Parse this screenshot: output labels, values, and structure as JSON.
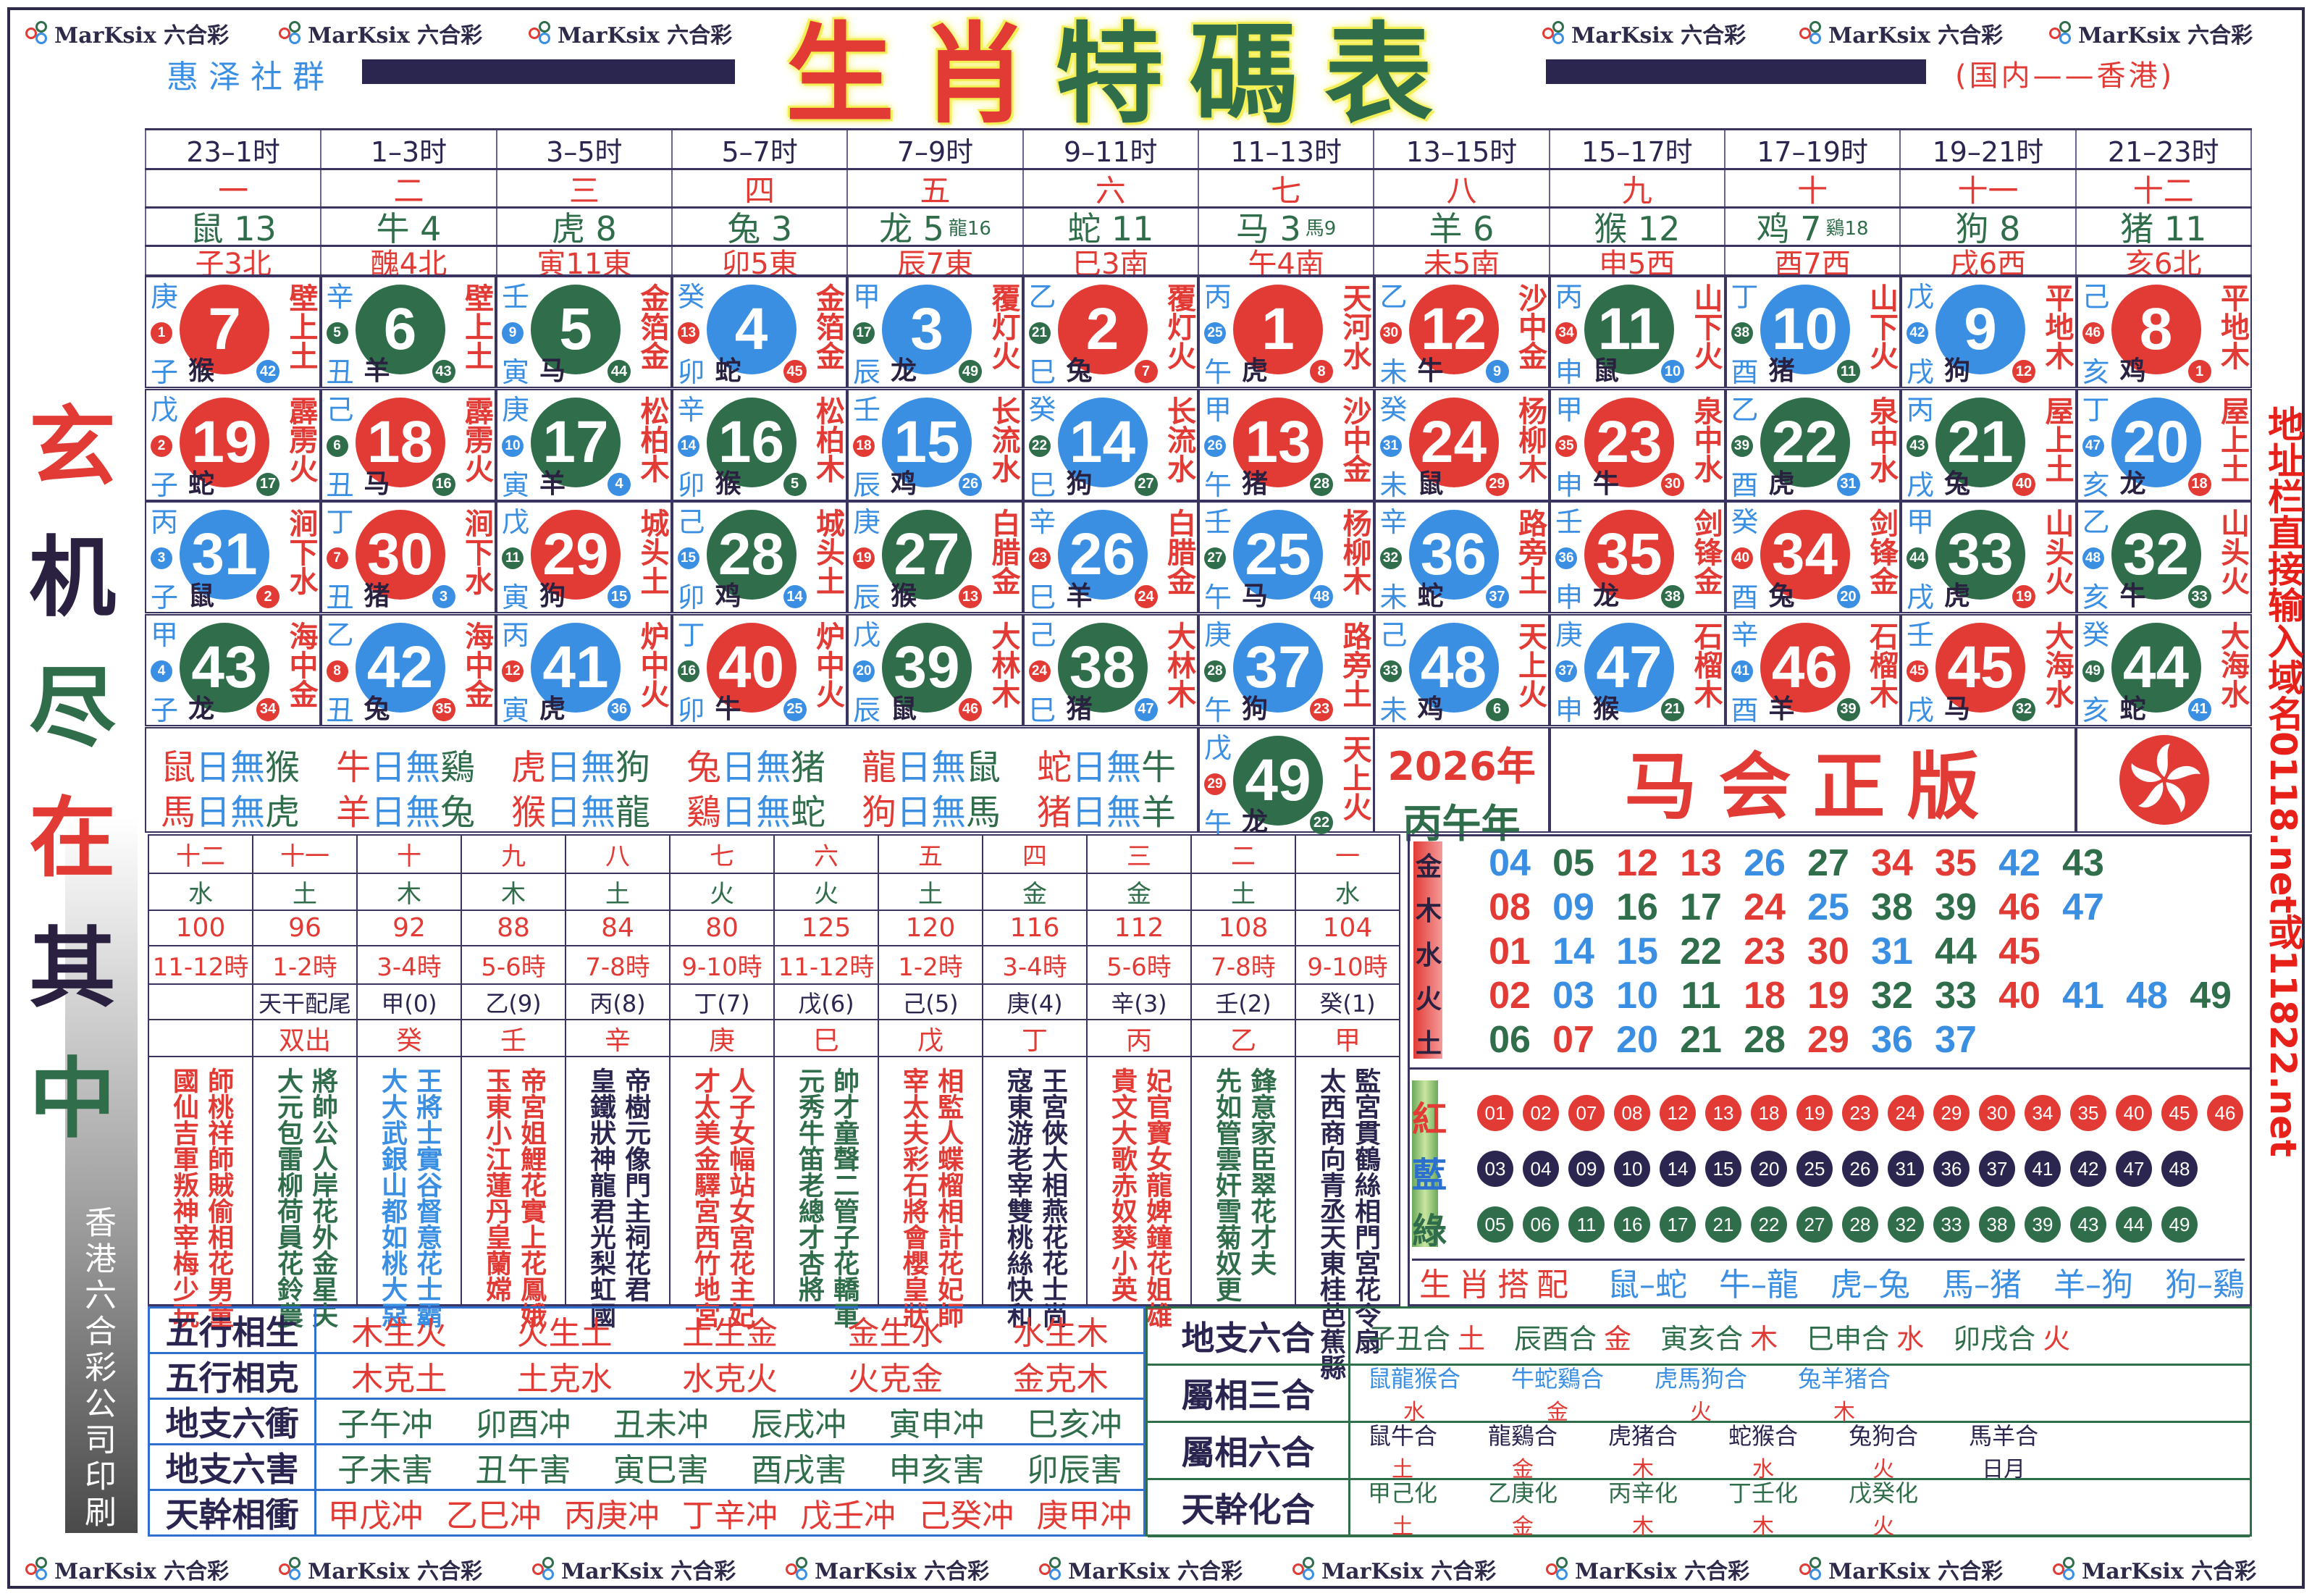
{
  "colors": {
    "red": "#e23b35",
    "green": "#2f6d4b",
    "blue": "#3b8fe3",
    "navy": "#2b2650"
  },
  "logo_text": "MarKsix 六合彩",
  "title": [
    "生",
    "肖",
    "特",
    "碼",
    "表"
  ],
  "subtitle_left": "惠泽社群",
  "subtitle_right": "(国内——香港)",
  "side_left": {
    "chars": [
      "玄",
      "机",
      "尽",
      "在",
      "其",
      "中"
    ],
    "print": "香港六合彩公司印刷"
  },
  "side_right": "地址栏直接输入域名0118.net或11822.net",
  "header": {
    "times": [
      "23–1时",
      "1–3时",
      "3–5时",
      "5–7时",
      "7–9时",
      "9–11时",
      "11–13时",
      "13–15时",
      "15–17时",
      "17–19时",
      "19–21时",
      "21–23时"
    ],
    "numerals": [
      "一",
      "二",
      "三",
      "四",
      "五",
      "六",
      "七",
      "八",
      "九",
      "十",
      "十一",
      "十二"
    ],
    "animals": [
      "鼠 13",
      "牛 4",
      "虎 8",
      "兔 3",
      "龙 5",
      "蛇 11",
      "马 3",
      "羊 6",
      "猴 12",
      "鸡 7",
      "狗 8",
      "猪 11"
    ],
    "animal_extra": [
      "",
      "",
      "",
      "",
      "龍16",
      "",
      "馬9",
      "",
      "",
      "鷄18",
      "",
      ""
    ],
    "directions": [
      "子3北",
      "醜4北",
      "寅11東",
      "卯5東",
      "辰7東",
      "巳3南",
      "午4南",
      "未5南",
      "申5西",
      "酉7西",
      "戌6西",
      "亥6北"
    ]
  },
  "grid": {
    "rows": [
      [
        [
          "庚",
          "1",
          "r",
          "子",
          "猴",
          "42",
          "b",
          "7",
          "r",
          "壁上土"
        ],
        [
          "辛",
          "5",
          "g",
          "丑",
          "羊",
          "43",
          "g",
          "6",
          "g",
          "壁上土"
        ],
        [
          "壬",
          "9",
          "b",
          "寅",
          "马",
          "44",
          "g",
          "5",
          "g",
          "金箔金"
        ],
        [
          "癸",
          "13",
          "r",
          "卯",
          "蛇",
          "45",
          "r",
          "4",
          "b",
          "金箔金"
        ],
        [
          "甲",
          "17",
          "g",
          "辰",
          "龙",
          "49",
          "g",
          "3",
          "b",
          "覆灯火"
        ],
        [
          "乙",
          "21",
          "g",
          "巳",
          "兔",
          "7",
          "r",
          "2",
          "r",
          "覆灯火"
        ],
        [
          "丙",
          "25",
          "b",
          "午",
          "虎",
          "8",
          "r",
          "1",
          "r",
          "天河水"
        ],
        [
          "乙",
          "30",
          "r",
          "未",
          "牛",
          "9",
          "b",
          "12",
          "r",
          "沙中金"
        ],
        [
          "丙",
          "34",
          "r",
          "申",
          "鼠",
          "10",
          "b",
          "11",
          "g",
          "山下火"
        ],
        [
          "丁",
          "38",
          "g",
          "酉",
          "猪",
          "11",
          "g",
          "10",
          "b",
          "山下火"
        ],
        [
          "戊",
          "42",
          "b",
          "戌",
          "狗",
          "12",
          "r",
          "9",
          "b",
          "平地木"
        ],
        [
          "己",
          "46",
          "r",
          "亥",
          "鸡",
          "1",
          "r",
          "8",
          "r",
          "平地木"
        ]
      ],
      [
        [
          "戊",
          "2",
          "r",
          "子",
          "蛇",
          "17",
          "g",
          "19",
          "r",
          "霹雳火"
        ],
        [
          "己",
          "6",
          "g",
          "丑",
          "马",
          "16",
          "g",
          "18",
          "r",
          "霹雳火"
        ],
        [
          "庚",
          "10",
          "b",
          "寅",
          "羊",
          "4",
          "b",
          "17",
          "g",
          "松柏木"
        ],
        [
          "辛",
          "14",
          "b",
          "卯",
          "猴",
          "5",
          "g",
          "16",
          "g",
          "松柏木"
        ],
        [
          "壬",
          "18",
          "r",
          "辰",
          "鸡",
          "26",
          "b",
          "15",
          "b",
          "长流水"
        ],
        [
          "癸",
          "22",
          "g",
          "巳",
          "狗",
          "27",
          "g",
          "14",
          "b",
          "长流水"
        ],
        [
          "甲",
          "26",
          "b",
          "午",
          "猪",
          "28",
          "g",
          "13",
          "r",
          "沙中金"
        ],
        [
          "癸",
          "31",
          "b",
          "未",
          "鼠",
          "29",
          "r",
          "24",
          "r",
          "杨柳木"
        ],
        [
          "甲",
          "35",
          "r",
          "申",
          "牛",
          "30",
          "r",
          "23",
          "r",
          "泉中水"
        ],
        [
          "乙",
          "39",
          "g",
          "酉",
          "虎",
          "31",
          "b",
          "22",
          "g",
          "泉中水"
        ],
        [
          "丙",
          "43",
          "g",
          "戌",
          "兔",
          "40",
          "r",
          "21",
          "g",
          "屋上土"
        ],
        [
          "丁",
          "47",
          "b",
          "亥",
          "龙",
          "18",
          "r",
          "20",
          "b",
          "屋上土"
        ]
      ],
      [
        [
          "丙",
          "3",
          "b",
          "子",
          "鼠",
          "2",
          "r",
          "31",
          "b",
          "涧下水"
        ],
        [
          "丁",
          "7",
          "r",
          "丑",
          "猪",
          "3",
          "b",
          "30",
          "r",
          "涧下水"
        ],
        [
          "戊",
          "11",
          "g",
          "寅",
          "狗",
          "15",
          "b",
          "29",
          "r",
          "城头土"
        ],
        [
          "己",
          "15",
          "b",
          "卯",
          "鸡",
          "14",
          "b",
          "28",
          "g",
          "城头土"
        ],
        [
          "庚",
          "19",
          "r",
          "辰",
          "猴",
          "13",
          "r",
          "27",
          "g",
          "白腊金"
        ],
        [
          "辛",
          "23",
          "r",
          "巳",
          "羊",
          "24",
          "r",
          "26",
          "b",
          "白腊金"
        ],
        [
          "壬",
          "27",
          "g",
          "午",
          "马",
          "48",
          "b",
          "25",
          "b",
          "杨柳木"
        ],
        [
          "辛",
          "32",
          "g",
          "未",
          "蛇",
          "37",
          "b",
          "36",
          "b",
          "路旁土"
        ],
        [
          "壬",
          "36",
          "b",
          "申",
          "龙",
          "38",
          "g",
          "35",
          "r",
          "剑锋金"
        ],
        [
          "癸",
          "40",
          "r",
          "酉",
          "兔",
          "20",
          "b",
          "34",
          "r",
          "剑锋金"
        ],
        [
          "甲",
          "44",
          "g",
          "戌",
          "虎",
          "19",
          "r",
          "33",
          "g",
          "山头火"
        ],
        [
          "乙",
          "48",
          "b",
          "亥",
          "牛",
          "33",
          "g",
          "32",
          "g",
          "山头火"
        ]
      ],
      [
        [
          "甲",
          "4",
          "b",
          "子",
          "龙",
          "34",
          "r",
          "43",
          "g",
          "海中金"
        ],
        [
          "乙",
          "8",
          "r",
          "丑",
          "兔",
          "35",
          "r",
          "42",
          "b",
          "海中金"
        ],
        [
          "丙",
          "12",
          "r",
          "寅",
          "虎",
          "36",
          "b",
          "41",
          "b",
          "炉中火"
        ],
        [
          "丁",
          "16",
          "g",
          "卯",
          "牛",
          "25",
          "b",
          "40",
          "r",
          "炉中火"
        ],
        [
          "戊",
          "20",
          "b",
          "辰",
          "鼠",
          "46",
          "r",
          "39",
          "g",
          "大林木"
        ],
        [
          "己",
          "24",
          "r",
          "巳",
          "猪",
          "47",
          "b",
          "38",
          "g",
          "大林木"
        ],
        [
          "庚",
          "28",
          "g",
          "午",
          "狗",
          "23",
          "r",
          "37",
          "b",
          "路旁土"
        ],
        [
          "己",
          "33",
          "g",
          "未",
          "鸡",
          "6",
          "g",
          "48",
          "b",
          "天上火"
        ],
        [
          "庚",
          "37",
          "b",
          "申",
          "猴",
          "21",
          "g",
          "47",
          "b",
          "石榴木"
        ],
        [
          "辛",
          "41",
          "b",
          "酉",
          "羊",
          "39",
          "g",
          "46",
          "r",
          "石榴木"
        ],
        [
          "壬",
          "45",
          "r",
          "戌",
          "马",
          "32",
          "g",
          "45",
          "r",
          "大海水"
        ],
        [
          "癸",
          "49",
          "g",
          "亥",
          "蛇",
          "41",
          "b",
          "44",
          "g",
          "大海水"
        ]
      ]
    ],
    "extra": [
      "戊",
      "29",
      "r",
      "午",
      "龙",
      "22",
      "g",
      "49",
      "g",
      "天上火"
    ]
  },
  "no_day": [
    [
      "鼠",
      "日無",
      "猴"
    ],
    [
      "牛",
      "日無",
      "鷄"
    ],
    [
      "虎",
      "日無",
      "狗"
    ],
    [
      "兔",
      "日無",
      "猪"
    ],
    [
      "龍",
      "日無",
      "鼠"
    ],
    [
      "蛇",
      "日無",
      "牛"
    ],
    [
      "馬",
      "日無",
      "虎"
    ],
    [
      "羊",
      "日無",
      "兔"
    ],
    [
      "猴",
      "日無",
      "龍"
    ],
    [
      "鷄",
      "日無",
      "蛇"
    ],
    [
      "狗",
      "日無",
      "馬"
    ],
    [
      "猪",
      "日無",
      "羊"
    ]
  ],
  "year": {
    "line1": "2026年",
    "line2": "丙午年"
  },
  "banner": "马会正版",
  "wuxing_table": {
    "numerals": [
      "十二",
      "十一",
      "十",
      "九",
      "八",
      "七",
      "六",
      "五",
      "四",
      "三",
      "二",
      "一"
    ],
    "elements": [
      "水",
      "土",
      "木",
      "木",
      "土",
      "火",
      "火",
      "土",
      "金",
      "金",
      "土",
      "水"
    ],
    "numbers": [
      "100",
      "96",
      "92",
      "88",
      "84",
      "80",
      "125",
      "120",
      "116",
      "112",
      "108",
      "104"
    ],
    "hours": [
      "11-12時",
      "1-2時",
      "3-4時",
      "5-6時",
      "7-8時",
      "9-10時",
      "11-12時",
      "1-2時",
      "3-4時",
      "5-6時",
      "7-8時",
      "9-10時"
    ],
    "stems": [
      "",
      "天干配尾",
      "甲(0)",
      "乙(9)",
      "丙(8)",
      "丁(7)",
      "戊(6)",
      "己(5)",
      "庚(4)",
      "辛(3)",
      "壬(2)",
      "癸(1)"
    ],
    "double": [
      "",
      "双出",
      "癸",
      "壬",
      "辛",
      "庚",
      "巳",
      "戊",
      "丁",
      "丙",
      "乙",
      "甲"
    ],
    "verses": [
      [
        "師桃祥師賊偷相花男童",
        "國仙吉軍叛神宰梅少玩",
        "#e23b35"
      ],
      [
        "將帥公人岸花外金星夫",
        "大元包雷柳荷員花鈴農",
        "#2f6d4b"
      ],
      [
        "王將士實谷督意花士霸",
        "大大武銀山都如桃大惡",
        "#3b8fe3"
      ],
      [
        "帝宮姐鯉花實上花鳳娥",
        "玉東小江蓮丹皇蘭嫦",
        "#e23b35"
      ],
      [
        "帝樹元像門主祠花君",
        "皇鐵狀神龍君光梨虹國",
        "#2b2650"
      ],
      [
        "人子女幅站女宮花主妃",
        "才太美金驛宮西竹地宮",
        "#e23b35"
      ],
      [
        "帥才童聲二管子花轎軍",
        "元秀牛笛老總才杏將",
        "#2f6d4b"
      ],
      [
        "相監人蝶榴相計花妃師",
        "宰太夫彩石將會櫻皇狀",
        "#e23b35"
      ],
      [
        "王宮俠大相燕花花士尚",
        "寇東游老宰雙桃絲快和",
        "#2b2650"
      ],
      [
        "妃官寶女龍婢鐘花姐雄",
        "貴文大歌赤奴葵小英",
        "#e23b35"
      ],
      [
        "鋒意家臣翠花才夫",
        "先如管雲奸雪菊奴更",
        "#2f6d4b"
      ],
      [
        "監宮貫鶴絲相門宮花令扇",
        "太西商向青丞天東桂芭蕉縣",
        "#2b2650"
      ]
    ]
  },
  "five_elements": {
    "labels": [
      "金",
      "木",
      "水",
      "火",
      "土"
    ],
    "rows": [
      [
        "04",
        "05",
        "12",
        "13",
        "26",
        "27",
        "34",
        "35",
        "42",
        "43"
      ],
      [
        "08",
        "09",
        "16",
        "17",
        "24",
        "25",
        "38",
        "39",
        "46",
        "47"
      ],
      [
        "01",
        "14",
        "15",
        "22",
        "23",
        "30",
        "31",
        "44",
        "45"
      ],
      [
        "02",
        "03",
        "10",
        "11",
        "18",
        "19",
        "32",
        "33",
        "40",
        "41",
        "48",
        "49"
      ],
      [
        "06",
        "07",
        "20",
        "21",
        "28",
        "29",
        "36",
        "37"
      ]
    ]
  },
  "color_balls": {
    "labels": [
      "紅",
      "藍",
      "綠"
    ],
    "red": [
      "01",
      "02",
      "07",
      "08",
      "12",
      "13",
      "18",
      "19",
      "23",
      "24",
      "29",
      "30",
      "34",
      "35",
      "40",
      "45",
      "46"
    ],
    "blue": [
      "03",
      "04",
      "09",
      "10",
      "14",
      "15",
      "20",
      "25",
      "26",
      "31",
      "36",
      "37",
      "41",
      "42",
      "47",
      "48"
    ],
    "green": [
      "05",
      "06",
      "11",
      "16",
      "17",
      "21",
      "22",
      "27",
      "28",
      "32",
      "33",
      "38",
      "39",
      "43",
      "44",
      "49"
    ]
  },
  "pairing": {
    "label": "生肖搭配",
    "items": [
      "鼠–蛇",
      "牛–龍",
      "虎–兔",
      "馬–猪",
      "羊–狗",
      "狗–鷄"
    ]
  },
  "relations_left": [
    {
      "label": "五行相生",
      "items": [
        "木生火",
        "火生土",
        "土生金",
        "金生水",
        "水生木"
      ],
      "color": "#e23b35"
    },
    {
      "label": "五行相克",
      "items": [
        "木克土",
        "土克水",
        "水克火",
        "火克金",
        "金克木"
      ],
      "color": "#e23b35"
    },
    {
      "label": "地支六衝",
      "items": [
        "子午冲",
        "卯酉冲",
        "丑未冲",
        "辰戌冲",
        "寅申冲",
        "巳亥冲"
      ],
      "color": "#2f6d4b"
    },
    {
      "label": "地支六害",
      "items": [
        "子未害",
        "丑午害",
        "寅巳害",
        "酉戌害",
        "申亥害",
        "卯辰害"
      ],
      "color": "#2f6d4b"
    },
    {
      "label": "天幹相衝",
      "items": [
        "甲戊冲",
        "乙巳冲",
        "丙庚冲",
        "丁辛冲",
        "戊壬冲",
        "己癸冲",
        "庚甲冲"
      ],
      "color": "#e23b35"
    }
  ],
  "relations_right": {
    "liuhe": {
      "label": "地支六合",
      "items": [
        [
          "子丑合",
          "土"
        ],
        [
          "辰酉合",
          "金"
        ],
        [
          "寅亥合",
          "木"
        ],
        [
          "巳申合",
          "水"
        ],
        [
          "卯戌合",
          "火"
        ]
      ]
    },
    "sanhe": {
      "label": "屬相三合",
      "items": [
        [
          "鼠龍猴合",
          "水"
        ],
        [
          "牛蛇鷄合",
          "金"
        ],
        [
          "虎馬狗合",
          "火"
        ],
        [
          "兔羊猪合",
          "木"
        ]
      ]
    },
    "shuxiang_liuhe": {
      "label": "屬相六合",
      "items": [
        [
          "鼠牛合",
          "土"
        ],
        [
          "龍鷄合",
          "金"
        ],
        [
          "虎猪合",
          "木"
        ],
        [
          "蛇猴合",
          "水"
        ],
        [
          "兔狗合",
          "火"
        ],
        [
          "馬羊合",
          "日月"
        ]
      ]
    },
    "tiangan": {
      "label": "天幹化合",
      "items": [
        [
          "甲己化",
          "土"
        ],
        [
          "乙庚化",
          "金"
        ],
        [
          "丙辛化",
          "木"
        ],
        [
          "丁壬化",
          "木"
        ],
        [
          "戊癸化",
          "火"
        ]
      ]
    }
  }
}
